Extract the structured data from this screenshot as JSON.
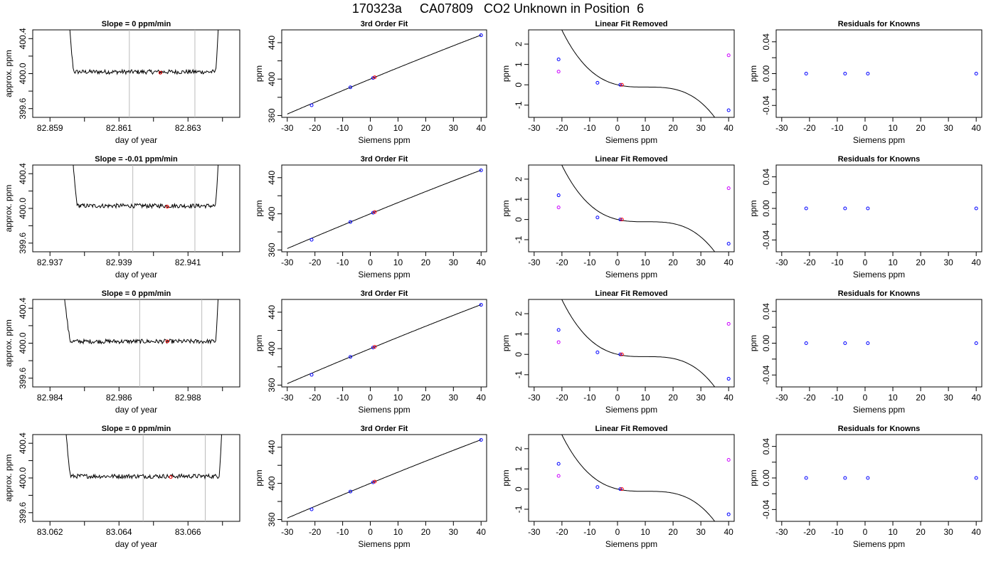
{
  "page": {
    "title": "170323a     CA07809   CO2 Unknown in Position  6"
  },
  "colors": {
    "known": "#0000ff",
    "unknown": "#ff0000",
    "residual_lin": "#cc00ff",
    "cursor": "#bbbbbb",
    "line": "#000000"
  },
  "chart_data": [
    {
      "row": 0,
      "type": "line",
      "title": "Slope =  0  ppm/min",
      "xlabel": "day of year",
      "ylabel": "approx. ppm",
      "xlim": [
        82.8585,
        82.8645
      ],
      "ylim": [
        399.5,
        400.5
      ],
      "xticks": [
        82.859,
        82.861,
        82.863
      ],
      "xtick_labels": [
        "82.859",
        "82.861",
        "82.863"
      ],
      "xminor": [
        82.86,
        82.862,
        82.864
      ],
      "yticks": [
        399.6,
        400.0,
        400.4
      ],
      "ytick_labels": [
        "399.6",
        "400.0",
        "400.4"
      ],
      "yminor": [
        399.8,
        400.2
      ],
      "trace_start": 82.8594,
      "trace_end": 82.864,
      "trace_rise_left": 82.8597,
      "trace_rise_right": 82.8638,
      "trace_level": 400.02,
      "cursors": [
        82.8613,
        82.8632
      ],
      "marker": {
        "x": 82.8622,
        "y": 400.01
      }
    },
    {
      "row": 0,
      "type": "scatter",
      "title": "3rd Order Fit",
      "xlabel": "Siemens ppm",
      "ylabel": "ppm",
      "xlim": [
        -32,
        42
      ],
      "ylim": [
        358,
        454
      ],
      "xticks": [
        -30,
        -20,
        -10,
        0,
        10,
        20,
        30,
        40
      ],
      "xtick_labels": [
        "-30",
        "-20",
        "-10",
        "0",
        "10",
        "20",
        "30",
        "40"
      ],
      "yticks": [
        360,
        400,
        440
      ],
      "ytick_labels": [
        "360",
        "400",
        "440"
      ],
      "yminor": [
        380,
        420
      ],
      "fit": {
        "from": -30,
        "to": 40,
        "coef": [
          400,
          1.2515,
          -0.001,
          -2.5e-06
        ]
      },
      "points": [
        {
          "x": -21.2,
          "y": 371.3,
          "c": "known"
        },
        {
          "x": -7.2,
          "y": 391.0,
          "c": "known"
        },
        {
          "x": 1.0,
          "y": 401.2,
          "c": "known"
        },
        {
          "x": 40.0,
          "y": 448.1,
          "c": "known"
        },
        {
          "x": 1.6,
          "y": 402.0,
          "c": "unknown"
        }
      ]
    },
    {
      "row": 0,
      "type": "scatter",
      "title": "Linear Fit Removed",
      "xlabel": "Siemens ppm",
      "ylabel": "ppm",
      "xlim": [
        -32,
        42
      ],
      "ylim": [
        -1.6,
        2.7
      ],
      "xticks": [
        -30,
        -20,
        -10,
        0,
        10,
        20,
        30,
        40
      ],
      "xtick_labels": [
        "-30",
        "-20",
        "-10",
        "0",
        "10",
        "20",
        "30",
        "40"
      ],
      "yticks": [
        -1,
        0,
        1,
        2
      ],
      "ytick_labels": [
        "-1",
        "0",
        "1",
        "2"
      ],
      "fit": {
        "from": -30,
        "to": 40,
        "coef": [
          0,
          -0.03227,
          0.0031,
          -9.96e-05
        ]
      },
      "points": [
        {
          "x": -21.2,
          "y": 1.25,
          "c": "known"
        },
        {
          "x": -7.2,
          "y": 0.1,
          "c": "known"
        },
        {
          "x": 1.0,
          "y": 0.0,
          "c": "known"
        },
        {
          "x": 40.0,
          "y": -1.25,
          "c": "known"
        },
        {
          "x": 1.6,
          "y": 0.0,
          "c": "unknown"
        },
        {
          "x": -21.2,
          "y": 0.65,
          "c": "residual_lin"
        },
        {
          "x": 40.0,
          "y": 1.45,
          "c": "residual_lin"
        }
      ]
    },
    {
      "row": 0,
      "type": "scatter",
      "title": "Residuals for Knowns",
      "xlabel": "Siemens ppm",
      "ylabel": "ppm",
      "xlim": [
        -32,
        42
      ],
      "ylim": [
        -0.055,
        0.055
      ],
      "xticks": [
        -30,
        -20,
        -10,
        0,
        10,
        20,
        30,
        40
      ],
      "xtick_labels": [
        "-30",
        "-20",
        "-10",
        "0",
        "10",
        "20",
        "30",
        "40"
      ],
      "yticks": [
        -0.04,
        0.0,
        0.04
      ],
      "ytick_labels": [
        "-0.04",
        "0.00",
        "0.04"
      ],
      "yminor": [
        -0.02,
        0.02
      ],
      "points": [
        {
          "x": -21.2,
          "y": 0.0,
          "c": "known"
        },
        {
          "x": -7.2,
          "y": 0.0,
          "c": "known"
        },
        {
          "x": 1.0,
          "y": 0.0,
          "c": "known"
        },
        {
          "x": 40.0,
          "y": 0.0,
          "c": "known"
        }
      ]
    },
    {
      "row": 1,
      "type": "line",
      "title": "Slope =  -0.01  ppm/min",
      "xlabel": "day of year",
      "ylabel": "approx. ppm",
      "xlim": [
        82.9365,
        82.9425
      ],
      "ylim": [
        399.5,
        400.5
      ],
      "xticks": [
        82.937,
        82.939,
        82.941
      ],
      "xtick_labels": [
        "82.937",
        "82.939",
        "82.941"
      ],
      "xminor": [
        82.938,
        82.94,
        82.942
      ],
      "yticks": [
        399.6,
        400.0,
        400.4
      ],
      "ytick_labels": [
        "399.6",
        "400.0",
        "400.4"
      ],
      "yminor": [
        399.8,
        400.2
      ],
      "trace_start": 82.9375,
      "trace_end": 82.942,
      "trace_rise_left": 82.9378,
      "trace_rise_right": 82.9418,
      "trace_level": 400.03,
      "cursors": [
        82.9394,
        82.9412
      ],
      "marker": {
        "x": 82.9404,
        "y": 400.02
      }
    },
    {
      "row": 1,
      "type": "scatter",
      "title": "3rd Order Fit",
      "xlabel": "Siemens ppm",
      "ylabel": "ppm",
      "xlim": [
        -32,
        42
      ],
      "ylim": [
        358,
        454
      ],
      "xticks": [
        -30,
        -20,
        -10,
        0,
        10,
        20,
        30,
        40
      ],
      "xtick_labels": [
        "-30",
        "-20",
        "-10",
        "0",
        "10",
        "20",
        "30",
        "40"
      ],
      "yticks": [
        360,
        400,
        440
      ],
      "ytick_labels": [
        "360",
        "400",
        "440"
      ],
      "yminor": [
        380,
        420
      ],
      "fit": {
        "from": -30,
        "to": 40,
        "coef": [
          400,
          1.2515,
          -0.001,
          -2.5e-06
        ]
      },
      "points": [
        {
          "x": -21.2,
          "y": 371.3,
          "c": "known"
        },
        {
          "x": -7.2,
          "y": 391.0,
          "c": "known"
        },
        {
          "x": 1.0,
          "y": 401.2,
          "c": "known"
        },
        {
          "x": 40.0,
          "y": 448.1,
          "c": "known"
        },
        {
          "x": 1.6,
          "y": 402.0,
          "c": "unknown"
        }
      ]
    },
    {
      "row": 1,
      "type": "scatter",
      "title": "Linear Fit Removed",
      "xlabel": "Siemens ppm",
      "ylabel": "ppm",
      "xlim": [
        -32,
        42
      ],
      "ylim": [
        -1.6,
        2.7
      ],
      "xticks": [
        -30,
        -20,
        -10,
        0,
        10,
        20,
        30,
        40
      ],
      "xtick_labels": [
        "-30",
        "-20",
        "-10",
        "0",
        "10",
        "20",
        "30",
        "40"
      ],
      "yticks": [
        -1,
        0,
        1,
        2
      ],
      "ytick_labels": [
        "-1",
        "0",
        "1",
        "2"
      ],
      "fit": {
        "from": -30,
        "to": 40,
        "coef": [
          0,
          -0.03227,
          0.0031,
          -9.96e-05
        ]
      },
      "points": [
        {
          "x": -21.2,
          "y": 1.2,
          "c": "known"
        },
        {
          "x": -7.2,
          "y": 0.1,
          "c": "known"
        },
        {
          "x": 1.0,
          "y": 0.0,
          "c": "known"
        },
        {
          "x": 40.0,
          "y": -1.2,
          "c": "known"
        },
        {
          "x": 1.6,
          "y": 0.0,
          "c": "unknown"
        },
        {
          "x": -21.2,
          "y": 0.6,
          "c": "residual_lin"
        },
        {
          "x": 40.0,
          "y": 1.55,
          "c": "residual_lin"
        }
      ]
    },
    {
      "row": 1,
      "type": "scatter",
      "title": "Residuals for Knowns",
      "xlabel": "Siemens ppm",
      "ylabel": "ppm",
      "xlim": [
        -32,
        42
      ],
      "ylim": [
        -0.055,
        0.055
      ],
      "xticks": [
        -30,
        -20,
        -10,
        0,
        10,
        20,
        30,
        40
      ],
      "xtick_labels": [
        "-30",
        "-20",
        "-10",
        "0",
        "10",
        "20",
        "30",
        "40"
      ],
      "yticks": [
        -0.04,
        0.0,
        0.04
      ],
      "ytick_labels": [
        "-0.04",
        "0.00",
        "0.04"
      ],
      "yminor": [
        -0.02,
        0.02
      ],
      "points": [
        {
          "x": -21.2,
          "y": 0.0,
          "c": "known"
        },
        {
          "x": -7.2,
          "y": 0.0,
          "c": "known"
        },
        {
          "x": 1.0,
          "y": 0.0,
          "c": "known"
        },
        {
          "x": 40.0,
          "y": 0.0,
          "c": "known"
        }
      ]
    },
    {
      "row": 2,
      "type": "line",
      "title": "Slope =  0  ppm/min",
      "xlabel": "day of year",
      "ylabel": "approx. ppm",
      "xlim": [
        82.9835,
        82.9895
      ],
      "ylim": [
        399.5,
        400.5
      ],
      "xticks": [
        82.984,
        82.986,
        82.988
      ],
      "xtick_labels": [
        "82.984",
        "82.986",
        "82.988"
      ],
      "xminor": [
        82.985,
        82.987,
        82.989
      ],
      "yticks": [
        399.6,
        400.0,
        400.4
      ],
      "ytick_labels": [
        "399.6",
        "400.0",
        "400.4"
      ],
      "yminor": [
        399.8,
        400.2
      ],
      "trace_start": 82.9842,
      "trace_end": 82.989,
      "trace_rise_left": 82.9846,
      "trace_rise_right": 82.9888,
      "trace_level": 400.02,
      "cursors": [
        82.9866,
        82.9884
      ],
      "marker": {
        "x": 82.9874,
        "y": 400.02
      }
    },
    {
      "row": 2,
      "type": "scatter",
      "title": "3rd Order Fit",
      "xlabel": "Siemens ppm",
      "ylabel": "ppm",
      "xlim": [
        -32,
        42
      ],
      "ylim": [
        358,
        454
      ],
      "xticks": [
        -30,
        -20,
        -10,
        0,
        10,
        20,
        30,
        40
      ],
      "xtick_labels": [
        "-30",
        "-20",
        "-10",
        "0",
        "10",
        "20",
        "30",
        "40"
      ],
      "yticks": [
        360,
        400,
        440
      ],
      "ytick_labels": [
        "360",
        "400",
        "440"
      ],
      "yminor": [
        380,
        420
      ],
      "fit": {
        "from": -30,
        "to": 40,
        "coef": [
          400,
          1.2515,
          -0.001,
          -2.5e-06
        ]
      },
      "points": [
        {
          "x": -21.2,
          "y": 371.3,
          "c": "known"
        },
        {
          "x": -7.2,
          "y": 391.0,
          "c": "known"
        },
        {
          "x": 1.0,
          "y": 401.2,
          "c": "known"
        },
        {
          "x": 40.0,
          "y": 448.1,
          "c": "known"
        },
        {
          "x": 1.6,
          "y": 402.0,
          "c": "unknown"
        }
      ]
    },
    {
      "row": 2,
      "type": "scatter",
      "title": "Linear Fit Removed",
      "xlabel": "Siemens ppm",
      "ylabel": "ppm",
      "xlim": [
        -32,
        42
      ],
      "ylim": [
        -1.6,
        2.7
      ],
      "xticks": [
        -30,
        -20,
        -10,
        0,
        10,
        20,
        30,
        40
      ],
      "xtick_labels": [
        "-30",
        "-20",
        "-10",
        "0",
        "10",
        "20",
        "30",
        "40"
      ],
      "yticks": [
        -1,
        0,
        1,
        2
      ],
      "ytick_labels": [
        "-1",
        "0",
        "1",
        "2"
      ],
      "fit": {
        "from": -30,
        "to": 40,
        "coef": [
          0,
          -0.03227,
          0.0031,
          -9.96e-05
        ]
      },
      "points": [
        {
          "x": -21.2,
          "y": 1.2,
          "c": "known"
        },
        {
          "x": -7.2,
          "y": 0.1,
          "c": "known"
        },
        {
          "x": 1.0,
          "y": 0.0,
          "c": "known"
        },
        {
          "x": 40.0,
          "y": -1.2,
          "c": "known"
        },
        {
          "x": 1.6,
          "y": 0.0,
          "c": "unknown"
        },
        {
          "x": -21.2,
          "y": 0.6,
          "c": "residual_lin"
        },
        {
          "x": 40.0,
          "y": 1.5,
          "c": "residual_lin"
        }
      ]
    },
    {
      "row": 2,
      "type": "scatter",
      "title": "Residuals for Knowns",
      "xlabel": "Siemens ppm",
      "ylabel": "ppm",
      "xlim": [
        -32,
        42
      ],
      "ylim": [
        -0.055,
        0.055
      ],
      "xticks": [
        -30,
        -20,
        -10,
        0,
        10,
        20,
        30,
        40
      ],
      "xtick_labels": [
        "-30",
        "-20",
        "-10",
        "0",
        "10",
        "20",
        "30",
        "40"
      ],
      "yticks": [
        -0.04,
        0.0,
        0.04
      ],
      "ytick_labels": [
        "-0.04",
        "0.00",
        "0.04"
      ],
      "yminor": [
        -0.02,
        0.02
      ],
      "points": [
        {
          "x": -21.2,
          "y": 0.0,
          "c": "known"
        },
        {
          "x": -7.2,
          "y": 0.0,
          "c": "known"
        },
        {
          "x": 1.0,
          "y": 0.0,
          "c": "known"
        },
        {
          "x": 40.0,
          "y": 0.0,
          "c": "known"
        }
      ]
    },
    {
      "row": 3,
      "type": "line",
      "title": "Slope =  0  ppm/min",
      "xlabel": "day of year",
      "ylabel": "approx. ppm",
      "xlim": [
        83.0615,
        83.0675
      ],
      "ylim": [
        399.5,
        400.5
      ],
      "xticks": [
        83.062,
        83.064,
        83.066
      ],
      "xtick_labels": [
        "83.062",
        "83.064",
        "83.066"
      ],
      "xminor": [
        83.063,
        83.065,
        83.067
      ],
      "yticks": [
        399.6,
        400.0,
        400.4
      ],
      "ytick_labels": [
        "399.6",
        "400.0",
        "400.4"
      ],
      "yminor": [
        399.8,
        400.2
      ],
      "trace_start": 83.0623,
      "trace_end": 83.0671,
      "trace_rise_left": 83.0626,
      "trace_rise_right": 83.0669,
      "trace_level": 400.02,
      "cursors": [
        83.0647,
        83.0665
      ],
      "marker": {
        "x": 83.0655,
        "y": 400.01
      }
    },
    {
      "row": 3,
      "type": "scatter",
      "title": "3rd Order Fit",
      "xlabel": "Siemens ppm",
      "ylabel": "ppm",
      "xlim": [
        -32,
        42
      ],
      "ylim": [
        358,
        454
      ],
      "xticks": [
        -30,
        -20,
        -10,
        0,
        10,
        20,
        30,
        40
      ],
      "xtick_labels": [
        "-30",
        "-20",
        "-10",
        "0",
        "10",
        "20",
        "30",
        "40"
      ],
      "yticks": [
        360,
        400,
        440
      ],
      "ytick_labels": [
        "360",
        "400",
        "440"
      ],
      "yminor": [
        380,
        420
      ],
      "fit": {
        "from": -30,
        "to": 40,
        "coef": [
          400,
          1.2515,
          -0.001,
          -2.5e-06
        ]
      },
      "points": [
        {
          "x": -21.2,
          "y": 371.3,
          "c": "known"
        },
        {
          "x": -7.2,
          "y": 391.0,
          "c": "known"
        },
        {
          "x": 1.0,
          "y": 401.2,
          "c": "known"
        },
        {
          "x": 40.0,
          "y": 448.1,
          "c": "known"
        },
        {
          "x": 1.6,
          "y": 402.0,
          "c": "unknown"
        }
      ]
    },
    {
      "row": 3,
      "type": "scatter",
      "title": "Linear Fit Removed",
      "xlabel": "Siemens ppm",
      "ylabel": "ppm",
      "xlim": [
        -32,
        42
      ],
      "ylim": [
        -1.6,
        2.7
      ],
      "xticks": [
        -30,
        -20,
        -10,
        0,
        10,
        20,
        30,
        40
      ],
      "xtick_labels": [
        "-30",
        "-20",
        "-10",
        "0",
        "10",
        "20",
        "30",
        "40"
      ],
      "yticks": [
        -1,
        0,
        1,
        2
      ],
      "ytick_labels": [
        "-1",
        "0",
        "1",
        "2"
      ],
      "fit": {
        "from": -30,
        "to": 40,
        "coef": [
          0,
          -0.03227,
          0.0031,
          -9.96e-05
        ]
      },
      "points": [
        {
          "x": -21.2,
          "y": 1.25,
          "c": "known"
        },
        {
          "x": -7.2,
          "y": 0.1,
          "c": "known"
        },
        {
          "x": 1.0,
          "y": 0.0,
          "c": "known"
        },
        {
          "x": 40.0,
          "y": -1.25,
          "c": "known"
        },
        {
          "x": 1.6,
          "y": 0.0,
          "c": "unknown"
        },
        {
          "x": -21.2,
          "y": 0.65,
          "c": "residual_lin"
        },
        {
          "x": 40.0,
          "y": 1.45,
          "c": "residual_lin"
        }
      ]
    },
    {
      "row": 3,
      "type": "scatter",
      "title": "Residuals for Knowns",
      "xlabel": "Siemens ppm",
      "ylabel": "ppm",
      "xlim": [
        -32,
        42
      ],
      "ylim": [
        -0.055,
        0.055
      ],
      "xticks": [
        -30,
        -20,
        -10,
        0,
        10,
        20,
        30,
        40
      ],
      "xtick_labels": [
        "-30",
        "-20",
        "-10",
        "0",
        "10",
        "20",
        "30",
        "40"
      ],
      "yticks": [
        -0.04,
        0.0,
        0.04
      ],
      "ytick_labels": [
        "-0.04",
        "0.00",
        "0.04"
      ],
      "yminor": [
        -0.02,
        0.02
      ],
      "points": [
        {
          "x": -21.2,
          "y": 0.0,
          "c": "known"
        },
        {
          "x": -7.2,
          "y": 0.0,
          "c": "known"
        },
        {
          "x": 1.0,
          "y": 0.0,
          "c": "known"
        },
        {
          "x": 40.0,
          "y": 0.0,
          "c": "known"
        }
      ]
    }
  ]
}
